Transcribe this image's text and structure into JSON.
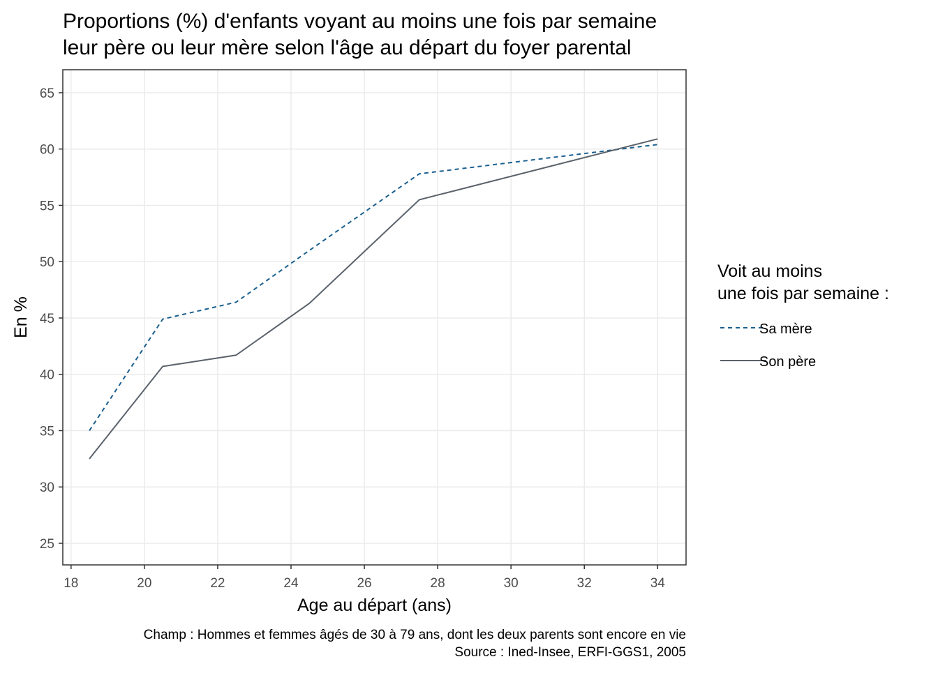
{
  "chart_data": {
    "type": "line",
    "title": [
      "Proportions (%) d'enfants voyant au moins une fois par semaine",
      "leur père ou leur mère selon l'âge au départ du foyer parental"
    ],
    "x_label": "Age au départ (ans)",
    "y_label": "En %",
    "caption": [
      "Champ : Hommes et femmes âgés de 30 à 79 ans, dont les deux parents sont encore en vie",
      "Source : Ined-Insee, ERFI-GGS1, 2005"
    ],
    "legend_title": [
      "Voit au moins",
      "une fois par semaine :"
    ],
    "legend_position": "right",
    "x": [
      18.5,
      20.5,
      22.5,
      24.5,
      27.5,
      34
    ],
    "series": [
      {
        "name": "Sa mère",
        "color": "#1a5f8f",
        "linestyle": "dashed",
        "values": [
          35.0,
          44.9,
          46.4,
          51.0,
          57.8,
          60.4
        ]
      },
      {
        "name": "Son père",
        "color": "#5a626b",
        "linestyle": "solid",
        "values": [
          32.5,
          40.7,
          41.7,
          46.3,
          55.5,
          60.9
        ]
      }
    ],
    "xlim": [
      17.775,
      34.775
    ],
    "xticks": [
      18,
      20,
      22,
      24,
      26,
      28,
      30,
      32,
      34
    ],
    "ylim": [
      23.08,
      67.04
    ],
    "yticks": [
      25,
      30,
      35,
      40,
      45,
      50,
      55,
      60,
      65
    ],
    "grid": true
  }
}
